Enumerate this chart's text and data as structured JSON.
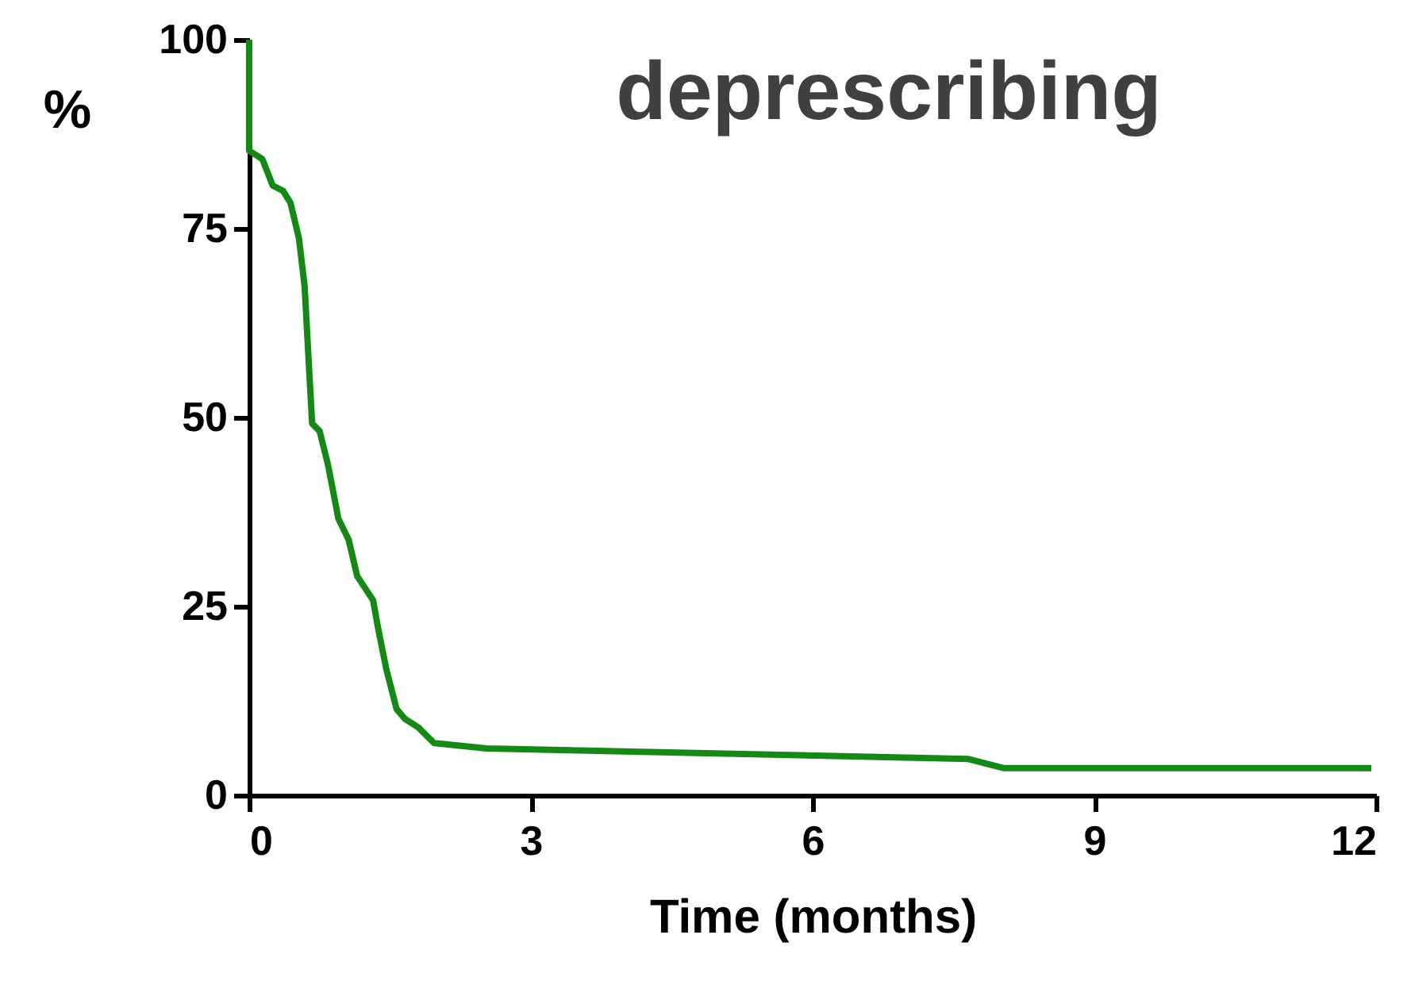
{
  "chart_data": {
    "type": "line",
    "title": "deprescribing",
    "xlabel": "Time (months)",
    "ylabel": "%",
    "x": [
      0,
      0,
      0.14,
      0.25,
      0.36,
      0.44,
      0.53,
      0.59,
      0.67,
      0.75,
      0.84,
      0.95,
      1.06,
      1.15,
      1.32,
      1.37,
      1.46,
      1.57,
      1.66,
      1.8,
      1.97,
      2.53,
      7.66,
      8.03,
      11.95
    ],
    "series": [
      {
        "color": "#138a13",
        "values": [
          100,
          85.3,
          84.2,
          80.7,
          80,
          78.4,
          73.7,
          67.4,
          49.2,
          48.2,
          43.7,
          36.6,
          33.8,
          29,
          25.8,
          22.3,
          16.7,
          11.4,
          10.1,
          9,
          6.9,
          6.2,
          4.8,
          3.6,
          3.6
        ]
      }
    ],
    "xlim": [
      0,
      12
    ],
    "xticks": [
      0,
      3,
      6,
      9,
      12
    ],
    "ylim": [
      0,
      100
    ],
    "yticks": [
      0,
      25,
      50,
      75,
      100
    ],
    "grid": false,
    "legend": false,
    "marker": "none",
    "line_style": "solid"
  }
}
